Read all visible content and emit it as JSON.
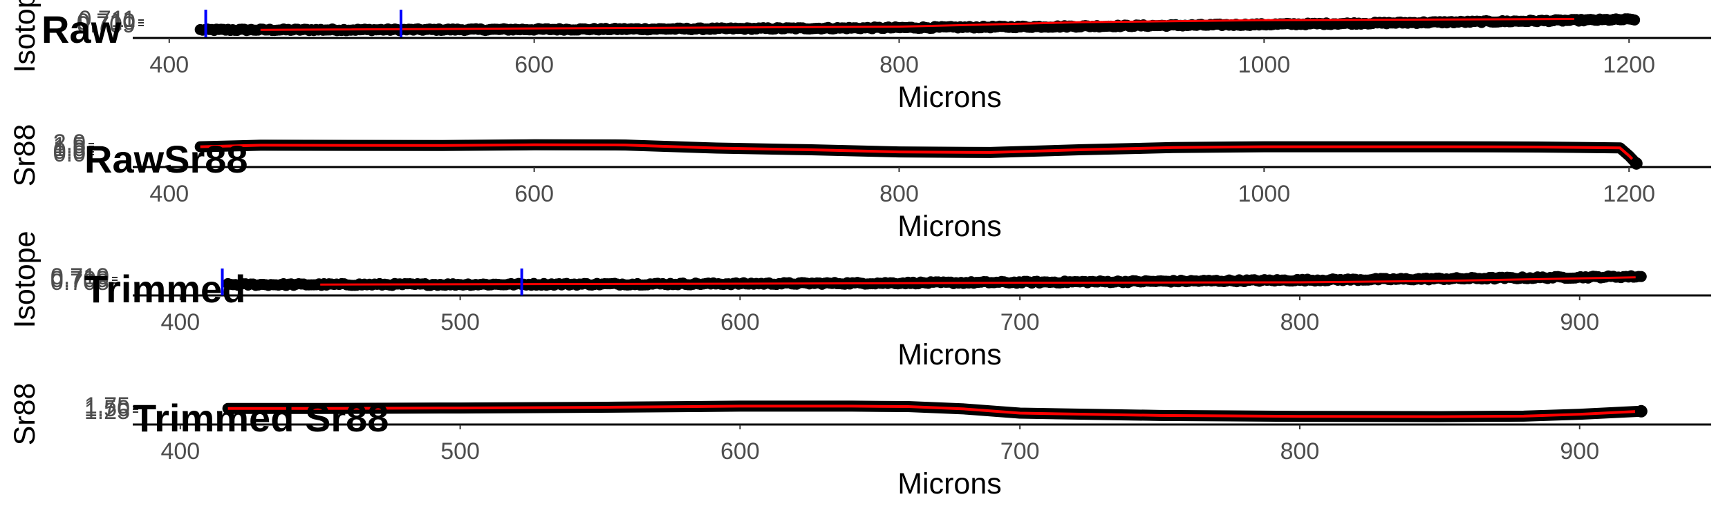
{
  "colors": {
    "points": "#000000",
    "fit_line": "#ff0000",
    "markers": "#0000ff",
    "tick_text": "#4d4d4d"
  },
  "chart_data": [
    {
      "type": "scatter",
      "title": "Raw",
      "xlabel": "Microns",
      "ylabel": "Isotope",
      "xlim": [
        380,
        1245
      ],
      "xticks": [
        400,
        600,
        800,
        1000,
        1200
      ],
      "yticks": [
        "0.709",
        "0.710",
        "0.711"
      ],
      "ylim": [
        0.7085,
        0.7115
      ],
      "grid": false,
      "vertical_markers_x": [
        420,
        527
      ],
      "points": {
        "x_start": 417,
        "x_end": 1203,
        "y_start": 0.70925,
        "y_end": 0.71055,
        "spread": 0.00022,
        "n": 620
      },
      "fit_line": [
        [
          450,
          0.70925
        ],
        [
          800,
          0.70965
        ],
        [
          900,
          0.7102
        ],
        [
          1000,
          0.71045
        ],
        [
          1170,
          0.7106
        ]
      ]
    },
    {
      "type": "line",
      "title": "RawSr88",
      "xlabel": "Microns",
      "ylabel": "Sr88",
      "xlim": [
        380,
        1245
      ],
      "xticks": [
        400,
        600,
        800,
        1000,
        1200
      ],
      "yticks": [
        "0.0",
        "0.5",
        "1.0",
        "1.5",
        "2.0"
      ],
      "ylim": [
        0,
        2.2
      ],
      "grid": false,
      "series": [
        {
          "values": [
            [
              417,
              1.72
            ],
            [
              450,
              1.86
            ],
            [
              500,
              1.85
            ],
            [
              550,
              1.84
            ],
            [
              600,
              1.9
            ],
            [
              650,
              1.88
            ],
            [
              700,
              1.6
            ],
            [
              750,
              1.45
            ],
            [
              800,
              1.25
            ],
            [
              850,
              1.2
            ],
            [
              900,
              1.45
            ],
            [
              950,
              1.65
            ],
            [
              1000,
              1.72
            ],
            [
              1050,
              1.72
            ],
            [
              1100,
              1.72
            ],
            [
              1150,
              1.7
            ],
            [
              1195,
              1.62
            ],
            [
              1200,
              0.9
            ],
            [
              1204,
              0.2
            ]
          ]
        }
      ]
    },
    {
      "type": "scatter",
      "title": "Trimmed",
      "xlabel": "Microns",
      "ylabel": "Isotope",
      "xlim": [
        383,
        947
      ],
      "xticks": [
        400,
        500,
        600,
        700,
        800,
        900
      ],
      "yticks": [
        "0.708",
        "0.709",
        "0.710"
      ],
      "ylim": [
        0.7079,
        0.7105
      ],
      "grid": false,
      "vertical_markers_x": [
        415,
        522
      ],
      "points": {
        "x_start": 417,
        "x_end": 922,
        "y_start": 0.70895,
        "y_end": 0.70985,
        "spread": 0.00022,
        "n": 560
      },
      "fit_line": [
        [
          450,
          0.70895
        ],
        [
          600,
          0.70905
        ],
        [
          700,
          0.70915
        ],
        [
          800,
          0.7092
        ],
        [
          850,
          0.70935
        ],
        [
          920,
          0.70975
        ]
      ]
    },
    {
      "type": "line",
      "title": "Trimmed Sr88",
      "xlabel": "Microns",
      "ylabel": "Sr88",
      "xlim": [
        383,
        947
      ],
      "xticks": [
        400,
        500,
        600,
        700,
        800,
        900
      ],
      "yticks": [
        "1.25",
        "1.50",
        "1.75"
      ],
      "ylim": [
        1.2,
        2.0
      ],
      "grid": false,
      "series": [
        {
          "values": [
            [
              417,
              1.8
            ],
            [
              450,
              1.8
            ],
            [
              500,
              1.82
            ],
            [
              550,
              1.85
            ],
            [
              600,
              1.9
            ],
            [
              640,
              1.9
            ],
            [
              660,
              1.88
            ],
            [
              680,
              1.78
            ],
            [
              700,
              1.6
            ],
            [
              750,
              1.5
            ],
            [
              800,
              1.46
            ],
            [
              850,
              1.45
            ],
            [
              880,
              1.47
            ],
            [
              900,
              1.55
            ],
            [
              922,
              1.68
            ]
          ]
        }
      ]
    }
  ]
}
